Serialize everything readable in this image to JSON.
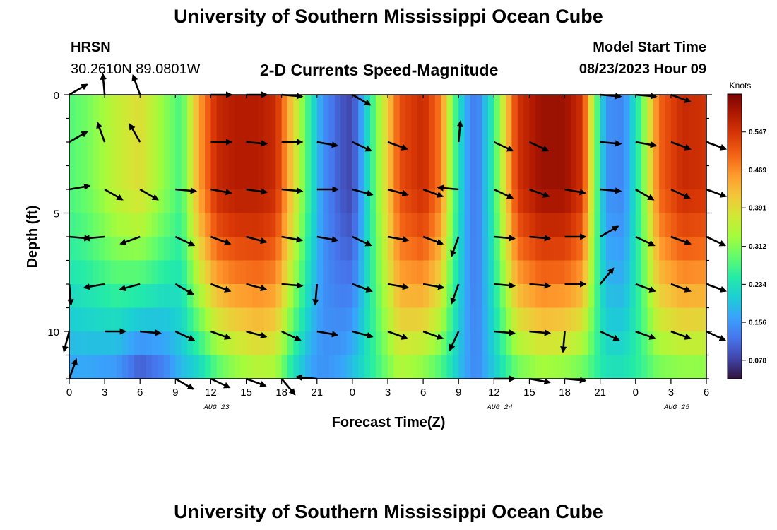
{
  "header": {
    "title": "University of Southern Mississippi Ocean Cube",
    "station": "HRSN",
    "coords": "30.2610N  89.0801W",
    "chart_title": "2-D Currents Speed-Magnitude",
    "model_label": "Model Start Time",
    "model_time": "08/23/2023 Hour 09"
  },
  "footer": {
    "title": "University of Southern Mississippi Ocean Cube"
  },
  "chart_data": {
    "type": "heatmap",
    "title": "2-D Currents Speed-Magnitude",
    "xlabel": "Forecast Time(Z)",
    "ylabel": "Depth (ft)",
    "x_range_hours": [
      0,
      54
    ],
    "y_range_ft": [
      0,
      12
    ],
    "x_tick_labels": [
      "0",
      "3",
      "6",
      "9",
      "12",
      "15",
      "18",
      "21",
      "0",
      "3",
      "6",
      "9",
      "12",
      "15",
      "18",
      "21",
      "0",
      "3",
      "6"
    ],
    "y_tick_labels": [
      "0",
      "5",
      "10"
    ],
    "y_tick_values": [
      0,
      5,
      10
    ],
    "date_labels": [
      {
        "text": "AUG 23",
        "hour": 12.5
      },
      {
        "text": "AUG 24",
        "hour": 36.5
      },
      {
        "text": "AUG 25",
        "hour": 51.5
      }
    ],
    "colorbar": {
      "unit": "Knots",
      "ticks": [
        "0.547",
        "0.469",
        "0.391",
        "0.312",
        "0.234",
        "0.156",
        "0.078"
      ],
      "tick_values": [
        0.547,
        0.469,
        0.391,
        0.312,
        0.234,
        0.156,
        0.078
      ],
      "range": [
        0.04,
        0.625
      ],
      "colormap": [
        "#30123b",
        "#4145ab",
        "#4675ed",
        "#39a2fc",
        "#1bcfd4",
        "#24eca6",
        "#61fc6c",
        "#a4fc3b",
        "#d1e834",
        "#f3c63a",
        "#fe9b2d",
        "#f36315",
        "#d93806",
        "#b11901",
        "#7a0403"
      ]
    },
    "speed_profile": {
      "hours": [
        0,
        1.5,
        4,
        6,
        8,
        9.5,
        11,
        12.5,
        14,
        16,
        17.5,
        19,
        20.5,
        21.5,
        23,
        24,
        26,
        28,
        30,
        31.5,
        32.5,
        33.5,
        34.5,
        36,
        38,
        40,
        42,
        43.5,
        44.5,
        45.5,
        47,
        48.5,
        50,
        52,
        54
      ],
      "surface": [
        0.28,
        0.3,
        0.36,
        0.39,
        0.32,
        0.27,
        0.45,
        0.56,
        0.58,
        0.58,
        0.56,
        0.4,
        0.24,
        0.15,
        0.1,
        0.08,
        0.3,
        0.52,
        0.56,
        0.48,
        0.3,
        0.18,
        0.12,
        0.26,
        0.55,
        0.6,
        0.6,
        0.55,
        0.32,
        0.15,
        0.14,
        0.28,
        0.5,
        0.56,
        0.55
      ],
      "bottom": [
        0.16,
        0.16,
        0.14,
        0.08,
        0.12,
        0.18,
        0.2,
        0.26,
        0.3,
        0.33,
        0.32,
        0.22,
        0.16,
        0.15,
        0.17,
        0.2,
        0.26,
        0.33,
        0.3,
        0.26,
        0.22,
        0.17,
        0.14,
        0.2,
        0.28,
        0.31,
        0.3,
        0.28,
        0.26,
        0.24,
        0.24,
        0.26,
        0.29,
        0.3,
        0.3
      ]
    },
    "arrow_hours": [
      0,
      3,
      6,
      9,
      12,
      15,
      18,
      21,
      24,
      27,
      30,
      33,
      36,
      39,
      42,
      45,
      48,
      51,
      54
    ],
    "arrow_depths_ft": [
      0,
      2,
      4,
      6,
      8,
      10,
      12
    ],
    "arrow_directions_deg": [
      [
        -30,
        -95,
        -110,
        -115,
        0,
        0,
        5,
        5,
        30,
        25,
        25,
        95,
        25,
        25,
        30,
        5,
        5,
        20,
        25
      ],
      [
        -30,
        -110,
        -120,
        -50,
        0,
        5,
        0,
        10,
        25,
        20,
        20,
        -85,
        25,
        25,
        20,
        5,
        10,
        20,
        20
      ],
      [
        -10,
        30,
        30,
        5,
        10,
        8,
        5,
        0,
        15,
        15,
        20,
        185,
        25,
        20,
        10,
        5,
        30,
        25,
        20
      ],
      [
        5,
        175,
        160,
        25,
        20,
        15,
        10,
        10,
        25,
        10,
        20,
        110,
        5,
        5,
        0,
        -30,
        25,
        20,
        25
      ],
      [
        85,
        170,
        165,
        30,
        20,
        15,
        5,
        95,
        20,
        10,
        10,
        110,
        5,
        5,
        0,
        -50,
        20,
        20,
        20
      ],
      [
        105,
        0,
        5,
        25,
        20,
        15,
        25,
        10,
        15,
        20,
        20,
        115,
        5,
        5,
        95,
        25,
        20,
        20,
        25
      ],
      [
        -70,
        0,
        0,
        30,
        25,
        20,
        50,
        185,
        0,
        0,
        0,
        0,
        0,
        10,
        5,
        0,
        0,
        0,
        0
      ]
    ],
    "arrow_visible": [
      [
        1,
        1,
        1,
        0,
        1,
        1,
        1,
        0,
        1,
        0,
        0,
        0,
        0,
        0,
        0,
        1,
        1,
        1,
        0
      ],
      [
        1,
        1,
        1,
        0,
        1,
        1,
        1,
        1,
        1,
        1,
        0,
        1,
        1,
        1,
        0,
        1,
        1,
        1,
        1
      ],
      [
        1,
        1,
        1,
        1,
        1,
        1,
        1,
        1,
        1,
        1,
        1,
        1,
        1,
        1,
        1,
        1,
        1,
        1,
        1
      ],
      [
        1,
        1,
        1,
        1,
        1,
        1,
        1,
        1,
        1,
        1,
        1,
        1,
        1,
        1,
        1,
        1,
        1,
        1,
        1
      ],
      [
        1,
        1,
        1,
        1,
        1,
        1,
        1,
        1,
        1,
        1,
        1,
        1,
        1,
        1,
        1,
        1,
        1,
        1,
        1
      ],
      [
        1,
        1,
        1,
        1,
        1,
        1,
        1,
        1,
        1,
        1,
        1,
        1,
        1,
        1,
        1,
        1,
        1,
        1,
        1
      ],
      [
        1,
        0,
        0,
        1,
        1,
        1,
        1,
        1,
        0,
        0,
        0,
        0,
        1,
        1,
        1,
        0,
        0,
        0,
        0
      ]
    ]
  }
}
